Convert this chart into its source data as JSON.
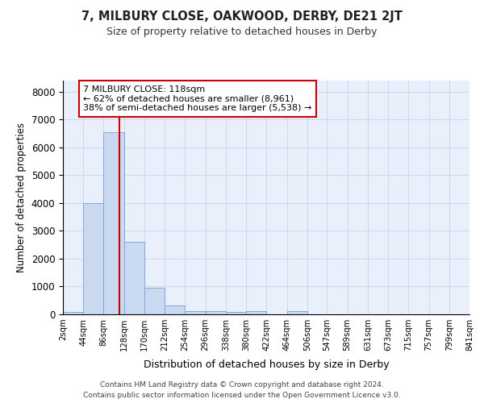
{
  "title": "7, MILBURY CLOSE, OAKWOOD, DERBY, DE21 2JT",
  "subtitle": "Size of property relative to detached houses in Derby",
  "xlabel": "Distribution of detached houses by size in Derby",
  "ylabel": "Number of detached properties",
  "bin_edges": [
    2,
    44,
    86,
    128,
    170,
    212,
    254,
    296,
    338,
    380,
    422,
    464,
    506,
    547,
    589,
    631,
    673,
    715,
    757,
    799,
    841
  ],
  "bin_labels": [
    "2sqm",
    "44sqm",
    "86sqm",
    "128sqm",
    "170sqm",
    "212sqm",
    "254sqm",
    "296sqm",
    "338sqm",
    "380sqm",
    "422sqm",
    "464sqm",
    "506sqm",
    "547sqm",
    "589sqm",
    "631sqm",
    "673sqm",
    "715sqm",
    "757sqm",
    "799sqm",
    "841sqm"
  ],
  "bar_heights": [
    100,
    4000,
    6550,
    2600,
    950,
    310,
    115,
    115,
    75,
    105,
    0,
    105,
    0,
    0,
    0,
    0,
    0,
    0,
    0,
    0
  ],
  "bar_color": "#c9d9f0",
  "bar_edge_color": "#7faadb",
  "red_line_x": 118,
  "red_line_color": "#cc0000",
  "ylim": [
    0,
    8400
  ],
  "yticks": [
    0,
    1000,
    2000,
    3000,
    4000,
    5000,
    6000,
    7000,
    8000
  ],
  "annotation_box_text": "7 MILBURY CLOSE: 118sqm\n← 62% of detached houses are smaller (8,961)\n38% of semi-detached houses are larger (5,538) →",
  "annotation_box_color": "#ffffff",
  "annotation_box_edge_color": "#cc0000",
  "bg_color": "#eaf0fb",
  "grid_color": "#d0d8ee",
  "footer_line1": "Contains HM Land Registry data © Crown copyright and database right 2024.",
  "footer_line2": "Contains public sector information licensed under the Open Government Licence v3.0."
}
